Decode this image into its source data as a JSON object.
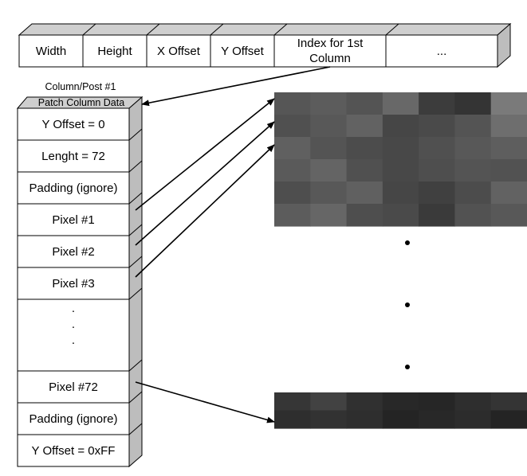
{
  "header": {
    "fields": [
      "Width",
      "Height",
      "X Offset",
      "Y Offset",
      "Index for 1st Column",
      "..."
    ]
  },
  "column": {
    "title_line1": "Column/Post #1",
    "title_line2": "Patch Column Data",
    "rows": {
      "y_offset": "Y Offset = 0",
      "length": "Lenght = 72",
      "padding_top": "Padding (ignore)",
      "pixel1": "Pixel #1",
      "pixel2": "Pixel #2",
      "pixel3": "Pixel #3",
      "ellipsis": [
        ".",
        ".",
        "."
      ],
      "pixel72": "Pixel #72",
      "padding_bottom": "Padding (ignore)",
      "end_marker": "Y Offset = 0xFF"
    }
  },
  "colors": {
    "box_face": "#ffffff",
    "box_top": "#cfcfcf",
    "box_side": "#bdbdbd",
    "stroke": "#000000"
  }
}
